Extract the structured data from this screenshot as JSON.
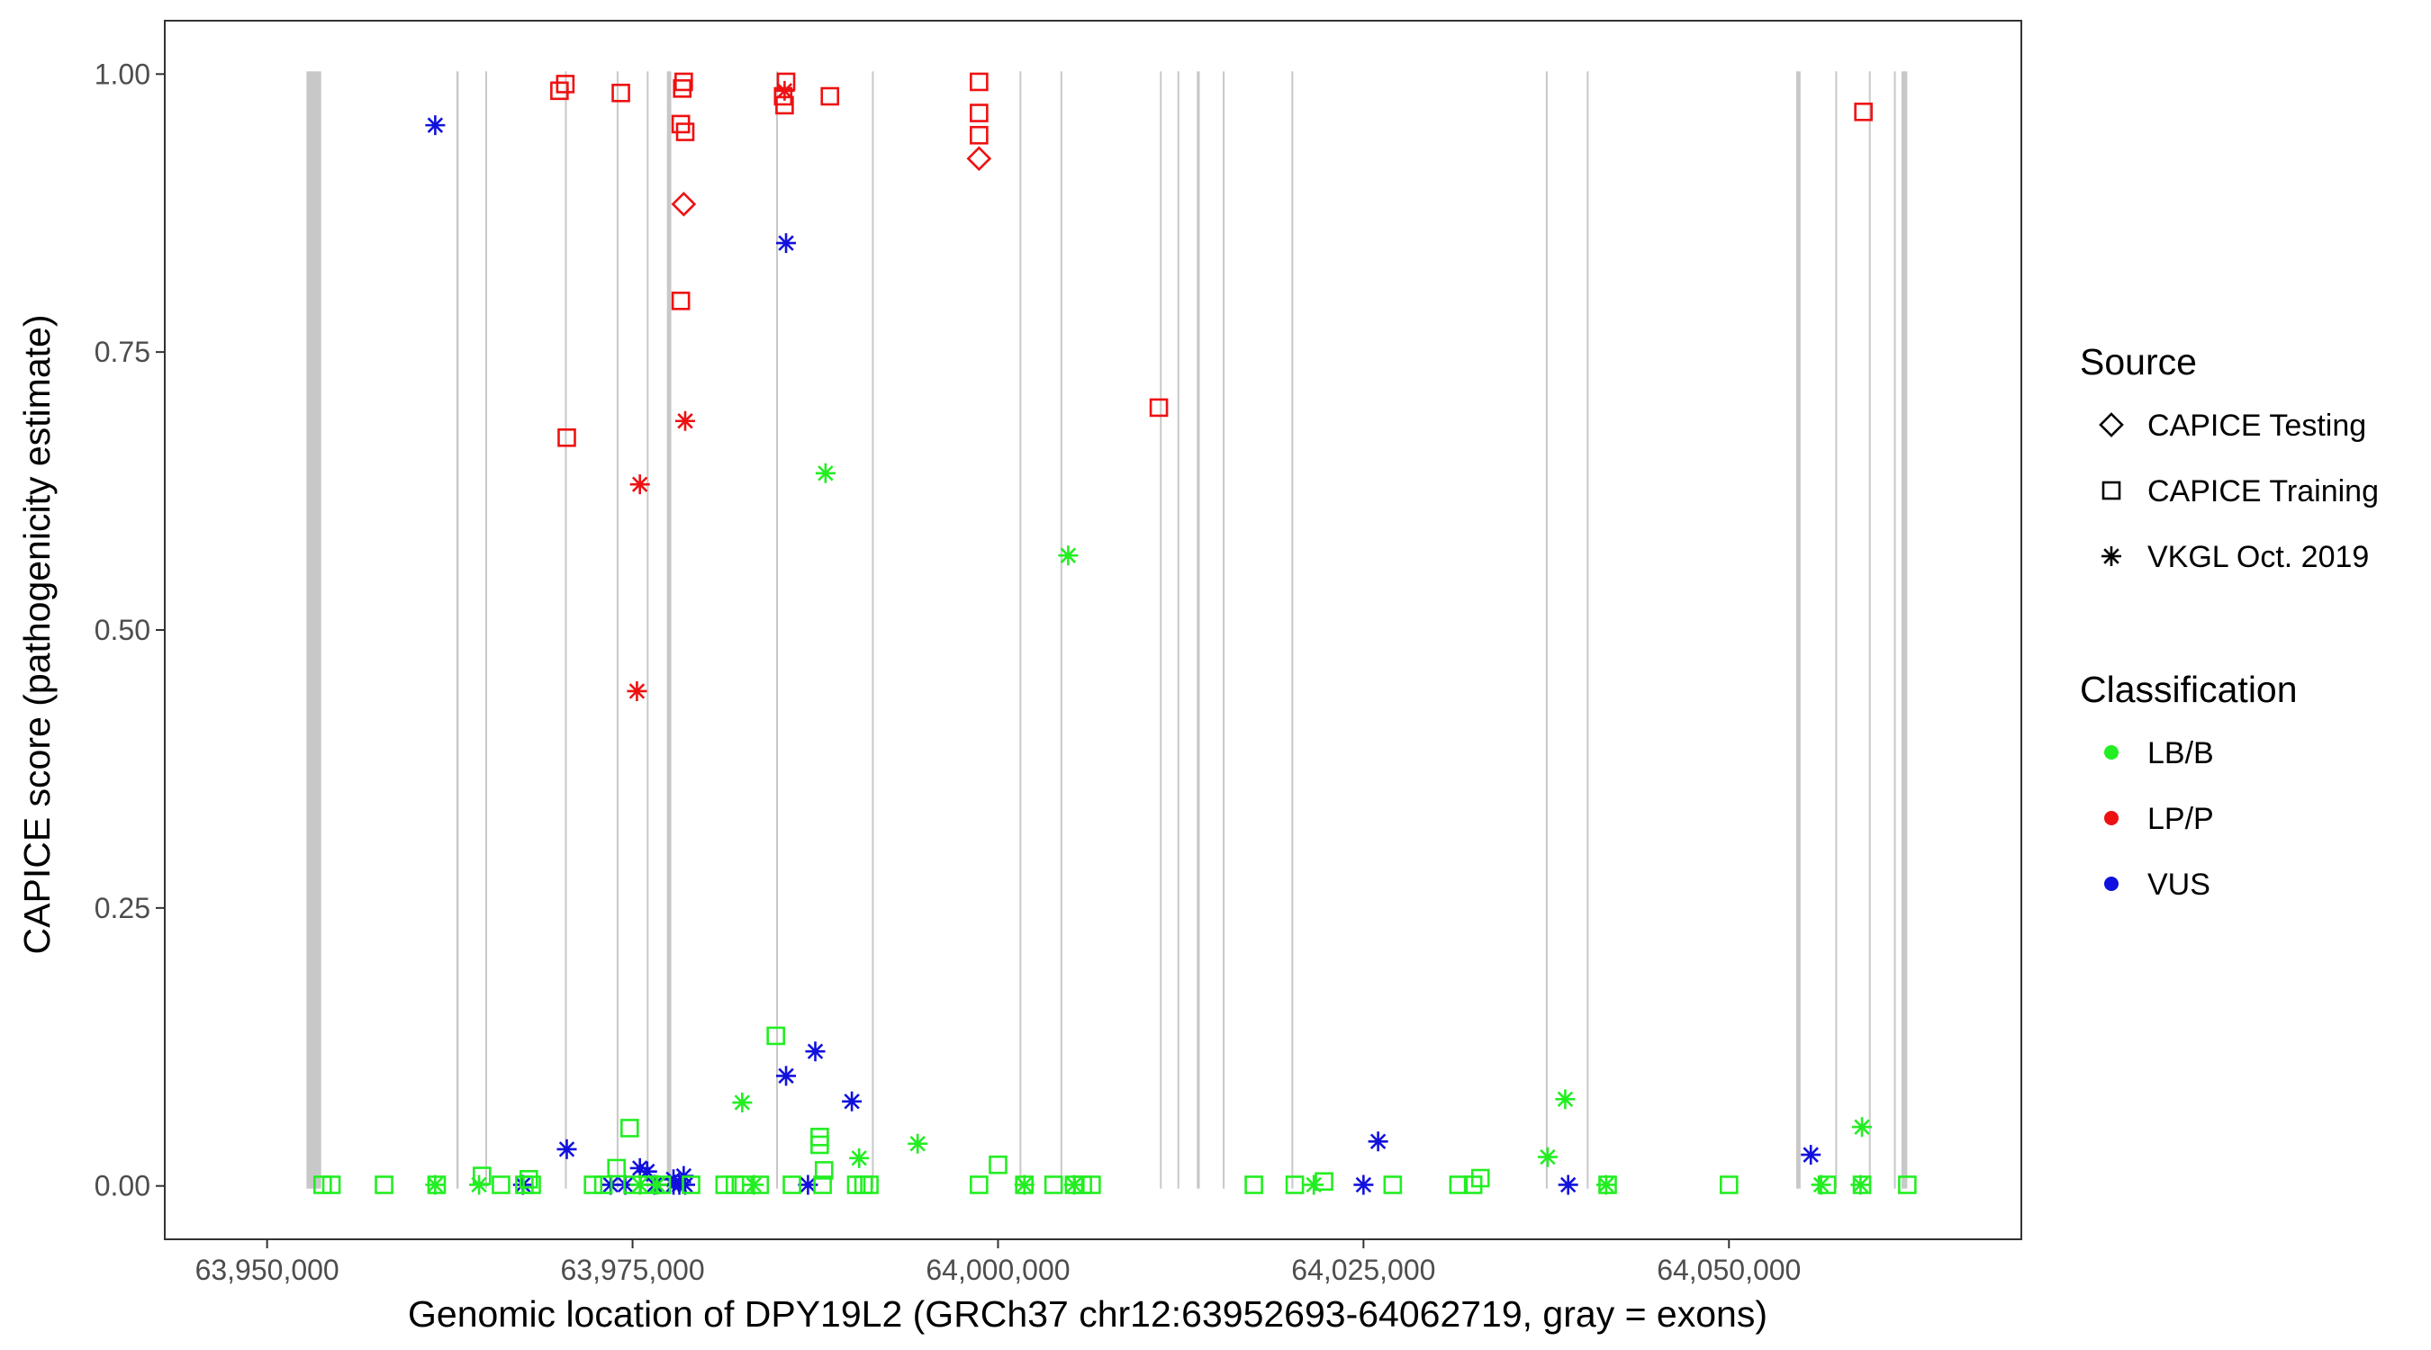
{
  "chart_data": {
    "type": "scatter",
    "title": "",
    "xlabel": "Genomic location of DPY19L2 (GRCh37 chr12:63952693-64062719, gray = exons)",
    "ylabel": "CAPICE score (pathogenicity estimate)",
    "xlim": [
      63943000,
      64070000
    ],
    "ylim": [
      -0.048,
      1.048
    ],
    "x_ticks": [
      63950000,
      63975000,
      64000000,
      64025000,
      64050000
    ],
    "x_tick_labels": [
      "63,950,000",
      "63,975,000",
      "64,000,000",
      "64,025,000",
      "64,050,000"
    ],
    "y_ticks": [
      0,
      0.25,
      0.5,
      0.75,
      1
    ],
    "y_tick_labels": [
      "0.00",
      "0.25",
      "0.50",
      "0.75",
      "1.00"
    ],
    "grid": false,
    "legend_position": "right",
    "colors": {
      "LB/B": "#22ee22",
      "LP/P": "#ee1111",
      "VUS": "#1111dd",
      "exon_band": "#c8c8c8"
    },
    "legend": {
      "source_title": "Source",
      "source_items": [
        {
          "label": "CAPICE Testing",
          "shape": "diamond"
        },
        {
          "label": "CAPICE Training",
          "shape": "square"
        },
        {
          "label": "VKGL Oct. 2019",
          "shape": "asterisk"
        }
      ],
      "classification_title": "Classification",
      "classification_items": [
        {
          "label": "LB/B",
          "color": "#22ee22"
        },
        {
          "label": "LP/P",
          "color": "#ee1111"
        },
        {
          "label": "VUS",
          "color": "#1111dd"
        }
      ]
    },
    "exons": [
      [
        63952693,
        63953700
      ],
      [
        63962950,
        63963100
      ],
      [
        63964950,
        63965020
      ],
      [
        63970400,
        63970470
      ],
      [
        63973940,
        63974010
      ],
      [
        63976000,
        63976070
      ],
      [
        63977350,
        63977650
      ],
      [
        63984850,
        63984920
      ],
      [
        63991400,
        63991470
      ],
      [
        64001500,
        64001570
      ],
      [
        64004300,
        64004370
      ],
      [
        64011100,
        64011170
      ],
      [
        64012300,
        64012370
      ],
      [
        64013600,
        64013800
      ],
      [
        64015400,
        64015470
      ],
      [
        64020100,
        64020170
      ],
      [
        64037500,
        64037570
      ],
      [
        64040300,
        64040370
      ],
      [
        64054600,
        64054900
      ],
      [
        64057300,
        64057370
      ],
      [
        64059600,
        64059670
      ],
      [
        64061300,
        64061400
      ],
      [
        64061800,
        64062200
      ]
    ],
    "series": [
      {
        "source": "CAPICE Testing",
        "classification": "LP/P",
        "points": [
          [
            63978500,
            0.883
          ],
          [
            63998700,
            0.924
          ]
        ]
      },
      {
        "source": "CAPICE Training",
        "classification": "LP/P",
        "points": [
          [
            63970000,
            0.985
          ],
          [
            63970400,
            0.991
          ],
          [
            63974200,
            0.983
          ],
          [
            63978300,
            0.955
          ],
          [
            63978400,
            0.987
          ],
          [
            63978500,
            0.993
          ],
          [
            63978600,
            0.948
          ],
          [
            63978300,
            0.796
          ],
          [
            63985500,
            0.993
          ],
          [
            63985300,
            0.98
          ],
          [
            63985400,
            0.972
          ],
          [
            63988500,
            0.98
          ],
          [
            63998700,
            0.993
          ],
          [
            63998700,
            0.965
          ],
          [
            63998700,
            0.945
          ],
          [
            63970500,
            0.673
          ],
          [
            64011000,
            0.7
          ],
          [
            64059200,
            0.966
          ]
        ]
      },
      {
        "source": "VKGL Oct. 2019",
        "classification": "LP/P",
        "points": [
          [
            63985400,
            0.985
          ],
          [
            63978600,
            0.688
          ],
          [
            63975500,
            0.631
          ],
          [
            63975300,
            0.445
          ]
        ]
      },
      {
        "source": "VKGL Oct. 2019",
        "classification": "VUS",
        "points": [
          [
            63961500,
            0.954
          ],
          [
            63985500,
            0.848
          ],
          [
            63970500,
            0.033
          ],
          [
            63985500,
            0.099
          ],
          [
            63987500,
            0.121
          ],
          [
            63990000,
            0.076
          ],
          [
            63975500,
            0.016
          ],
          [
            63976000,
            0.013
          ],
          [
            63977800,
            0.006
          ],
          [
            63978500,
            0.009
          ],
          [
            63967500,
            0.001
          ],
          [
            63973500,
            0.001
          ],
          [
            63974500,
            0.001
          ],
          [
            63976500,
            0.001
          ],
          [
            63977800,
            0.001
          ],
          [
            63978200,
            0.001
          ],
          [
            63978600,
            0.001
          ],
          [
            63987000,
            0.001
          ],
          [
            64026000,
            0.04
          ],
          [
            64025000,
            0.001
          ],
          [
            64039000,
            0.001
          ],
          [
            64055600,
            0.028
          ]
        ]
      },
      {
        "source": "VKGL Oct. 2019",
        "classification": "LB/B",
        "points": [
          [
            63988200,
            0.641
          ],
          [
            64004800,
            0.567
          ],
          [
            63982500,
            0.075
          ],
          [
            63990500,
            0.025
          ],
          [
            63994500,
            0.038
          ],
          [
            64038800,
            0.078
          ],
          [
            64037600,
            0.026
          ],
          [
            64059100,
            0.053
          ],
          [
            63961500,
            0.001
          ],
          [
            63964500,
            0.001
          ],
          [
            63975500,
            0.001
          ],
          [
            63976700,
            0.001
          ],
          [
            63983300,
            0.001
          ],
          [
            64001800,
            0.001
          ],
          [
            64005200,
            0.001
          ],
          [
            64021600,
            0.001
          ],
          [
            64041600,
            0.001
          ],
          [
            64056300,
            0.001
          ],
          [
            64059000,
            0.001
          ]
        ]
      },
      {
        "source": "CAPICE Training",
        "classification": "LB/B",
        "points": [
          [
            63984800,
            0.135
          ],
          [
            63974800,
            0.052
          ],
          [
            63987800,
            0.044
          ],
          [
            63987800,
            0.037
          ],
          [
            63988100,
            0.014
          ],
          [
            63990300,
            0.001
          ],
          [
            64000000,
            0.019
          ],
          [
            63964700,
            0.009
          ],
          [
            63967900,
            0.006
          ],
          [
            63973900,
            0.016
          ],
          [
            64033000,
            0.007
          ],
          [
            64022300,
            0.004
          ],
          [
            63953800,
            0.001
          ],
          [
            63954400,
            0.001
          ],
          [
            63958000,
            0.001
          ],
          [
            63961600,
            0.001
          ],
          [
            63966000,
            0.001
          ],
          [
            63967600,
            0.001
          ],
          [
            63968100,
            0.001
          ],
          [
            63972300,
            0.001
          ],
          [
            63973000,
            0.001
          ],
          [
            63975000,
            0.001
          ],
          [
            63976100,
            0.001
          ],
          [
            63977000,
            0.001
          ],
          [
            63979000,
            0.001
          ],
          [
            63981300,
            0.001
          ],
          [
            63982000,
            0.001
          ],
          [
            63982600,
            0.001
          ],
          [
            63983700,
            0.001
          ],
          [
            63985900,
            0.001
          ],
          [
            63988000,
            0.001
          ],
          [
            63990800,
            0.001
          ],
          [
            63991200,
            0.001
          ],
          [
            63998700,
            0.001
          ],
          [
            64001800,
            0.001
          ],
          [
            64003800,
            0.001
          ],
          [
            64005200,
            0.001
          ],
          [
            64005800,
            0.001
          ],
          [
            64006400,
            0.001
          ],
          [
            64017500,
            0.001
          ],
          [
            64020300,
            0.001
          ],
          [
            64027000,
            0.001
          ],
          [
            64031500,
            0.001
          ],
          [
            64032500,
            0.001
          ],
          [
            64041700,
            0.001
          ],
          [
            64050000,
            0.001
          ],
          [
            64056700,
            0.001
          ],
          [
            64059100,
            0.001
          ],
          [
            64062200,
            0.001
          ]
        ]
      }
    ]
  }
}
